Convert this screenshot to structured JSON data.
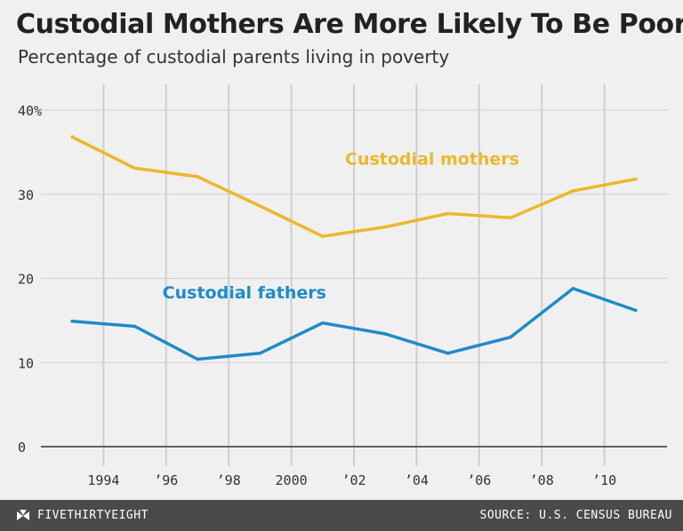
{
  "title": "Custodial Mothers Are More Likely To Be Poor",
  "subtitle": "Percentage of custodial parents living in poverty",
  "footer": {
    "brand": "FIVETHIRTYEIGHT",
    "brand_icon": "fivethirtyeight-logo-icon",
    "source": "SOURCE: U.S. CENSUS BUREAU"
  },
  "colors": {
    "mothers": "#ecb82b",
    "fathers": "#1f8bc9",
    "grid": "#cfcfcf",
    "baseline": "#333333",
    "tick_text": "#333333"
  },
  "chart_data": {
    "type": "line",
    "title": "Custodial Mothers Are More Likely To Be Poor",
    "subtitle": "Percentage of custodial parents living in poverty",
    "xlabel": "",
    "ylabel": "",
    "x": [
      1993,
      1995,
      1997,
      1999,
      2001,
      2003,
      2005,
      2007,
      2009,
      2011
    ],
    "xlim": [
      1992,
      2012
    ],
    "ylim": [
      0,
      40
    ],
    "grid": true,
    "x_ticks": [
      {
        "value": 1994,
        "label": "1994"
      },
      {
        "value": 1996,
        "label": "’96"
      },
      {
        "value": 1998,
        "label": "’98"
      },
      {
        "value": 2000,
        "label": "2000"
      },
      {
        "value": 2002,
        "label": "’02"
      },
      {
        "value": 2004,
        "label": "’04"
      },
      {
        "value": 2006,
        "label": "’06"
      },
      {
        "value": 2008,
        "label": "’08"
      },
      {
        "value": 2010,
        "label": "’10"
      }
    ],
    "y_ticks": [
      {
        "value": 0,
        "label": "0"
      },
      {
        "value": 10,
        "label": "10"
      },
      {
        "value": 20,
        "label": "20"
      },
      {
        "value": 30,
        "label": "30"
      },
      {
        "value": 40,
        "label": "40%"
      }
    ],
    "series": [
      {
        "name": "Custodial mothers",
        "key": "mothers",
        "values": [
          36.8,
          33.1,
          32.1,
          28.6,
          25.0,
          26.1,
          27.7,
          27.2,
          30.4,
          31.8
        ],
        "label_at": {
          "x": 2004.5,
          "y": 33.5
        }
      },
      {
        "name": "Custodial fathers",
        "key": "fathers",
        "values": [
          14.9,
          14.3,
          10.4,
          11.1,
          14.7,
          13.4,
          11.1,
          13.0,
          18.8,
          16.2
        ],
        "label_at": {
          "x": 1998.5,
          "y": 17.6
        }
      }
    ]
  }
}
